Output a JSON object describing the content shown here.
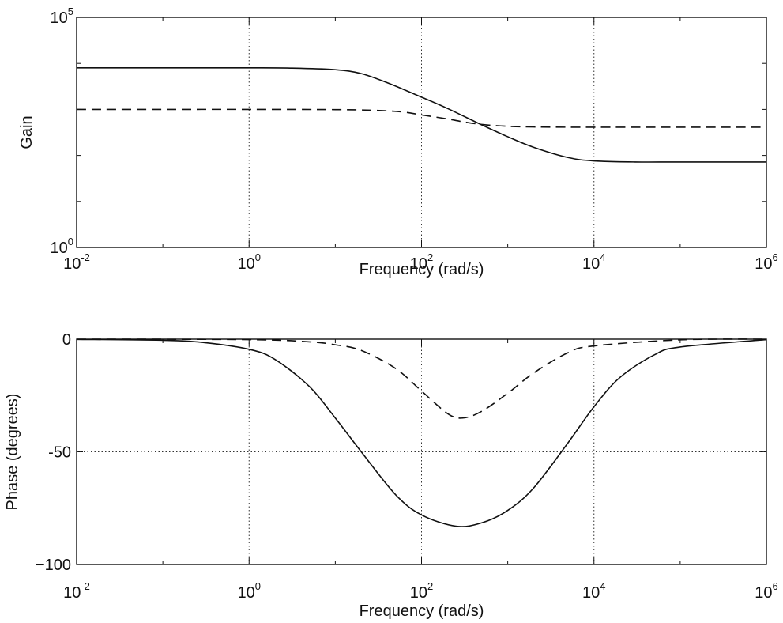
{
  "chart_data": [
    {
      "type": "line",
      "xscale": "log",
      "yscale": "log",
      "xlim": [
        0.01,
        1000000
      ],
      "ylim": [
        1,
        100000
      ],
      "ylabel": "Gain",
      "xlabel": "Frequency (rad/s)",
      "grid": "x-only",
      "xticks": [
        {
          "base": "10",
          "exp": "-2"
        },
        {
          "base": "10",
          "exp": "0"
        },
        {
          "base": "10",
          "exp": "2"
        },
        {
          "base": "10",
          "exp": "4"
        },
        {
          "base": "10",
          "exp": "6"
        }
      ],
      "yticks": [
        {
          "base": "10",
          "exp": "0"
        },
        {
          "base": "10",
          "exp": "5"
        }
      ],
      "series": [
        {
          "style": "solid",
          "color": "#111111",
          "x": [
            0.01,
            0.1,
            1,
            3,
            10,
            20,
            40,
            100,
            200,
            500,
            1000,
            2000,
            5000,
            10000,
            30000,
            100000,
            1000000
          ],
          "y": [
            8000,
            8000,
            8000,
            7900,
            7300,
            6000,
            3800,
            1850,
            1050,
            460,
            255,
            150,
            90,
            76,
            72,
            72,
            72
          ]
        },
        {
          "style": "dashed",
          "color": "#111111",
          "x": [
            0.01,
            0.1,
            1,
            10,
            30,
            60,
            100,
            200,
            300,
            500,
            1000,
            2000,
            10000,
            1000000
          ],
          "y": [
            1000,
            1000,
            1000,
            990,
            950,
            880,
            760,
            620,
            540,
            470,
            430,
            415,
            410,
            410
          ]
        }
      ]
    },
    {
      "type": "line",
      "xscale": "log",
      "xlim": [
        0.01,
        1000000
      ],
      "ylim": [
        -100,
        0
      ],
      "ylabel": "Phase (degrees)",
      "xlabel": "Frequency (rad/s)",
      "grid": "x and y=-50",
      "xticks": [
        {
          "base": "10",
          "exp": "-2"
        },
        {
          "base": "10",
          "exp": "0"
        },
        {
          "base": "10",
          "exp": "2"
        },
        {
          "base": "10",
          "exp": "4"
        },
        {
          "base": "10",
          "exp": "6"
        }
      ],
      "yticks": [
        {
          "value": 0,
          "label": "0"
        },
        {
          "value": -50,
          "label": "-50"
        },
        {
          "value": -100,
          "label": "−100"
        }
      ],
      "series": [
        {
          "style": "solid",
          "color": "#111111",
          "x": [
            0.01,
            0.1,
            0.3,
            1,
            2,
            5,
            10,
            20,
            50,
            100,
            250,
            500,
            1000,
            2000,
            5000,
            10000,
            20000,
            50000,
            100000,
            1000000
          ],
          "y": [
            -0.1,
            -0.5,
            -1.5,
            -4.5,
            -9,
            -21,
            -35,
            -50,
            -69,
            -78,
            -83,
            -81.5,
            -76,
            -66,
            -46,
            -30,
            -17,
            -7,
            -3.5,
            -0.2
          ]
        },
        {
          "style": "dashed",
          "color": "#111111",
          "x": [
            0.01,
            1,
            5,
            10,
            20,
            50,
            100,
            200,
            300,
            500,
            1000,
            2000,
            5000,
            10000,
            100000,
            1000000
          ],
          "y": [
            0,
            -0.2,
            -1.2,
            -2.5,
            -5,
            -13,
            -23,
            -33,
            -35,
            -32,
            -24,
            -15,
            -6,
            -3,
            -0.3,
            0
          ]
        }
      ]
    }
  ]
}
